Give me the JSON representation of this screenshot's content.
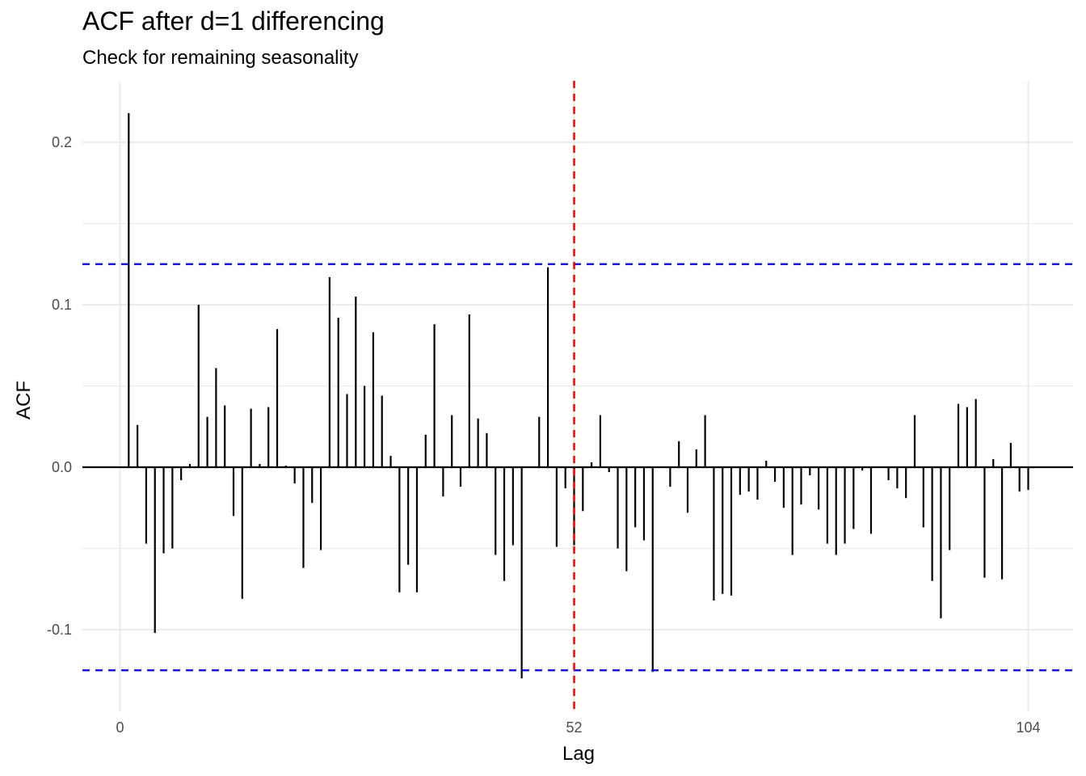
{
  "chart_data": {
    "type": "bar",
    "title": "ACF after d=1 differencing",
    "subtitle": "Check for remaining seasonality",
    "xlabel": "Lag",
    "ylabel": "ACF",
    "xlim": [
      0,
      104
    ],
    "ylim": [
      -0.13,
      0.22
    ],
    "x_ticks": [
      0,
      52,
      104
    ],
    "x_tick_labels": [
      "0",
      "52",
      "104"
    ],
    "y_ticks": [
      -0.1,
      0.0,
      0.1,
      0.2
    ],
    "y_tick_labels": [
      "-0.1",
      "0.0",
      "0.1",
      "0.2"
    ],
    "confidence_bound": 0.125,
    "seasonal_marker_lag": 52,
    "grid": true,
    "colors": {
      "bars": "#000000",
      "bounds": "#0000ff",
      "seasonal": "#ff0000",
      "grid": "#ebebeb"
    },
    "lags": [
      1,
      2,
      3,
      4,
      5,
      6,
      7,
      8,
      9,
      10,
      11,
      12,
      13,
      14,
      15,
      16,
      17,
      18,
      19,
      20,
      21,
      22,
      23,
      24,
      25,
      26,
      27,
      28,
      29,
      30,
      31,
      32,
      33,
      34,
      35,
      36,
      37,
      38,
      39,
      40,
      41,
      42,
      43,
      44,
      45,
      46,
      47,
      48,
      49,
      50,
      51,
      52,
      53,
      54,
      55,
      56,
      57,
      58,
      59,
      60,
      61,
      62,
      63,
      64,
      65,
      66,
      67,
      68,
      69,
      70,
      71,
      72,
      73,
      74,
      75,
      76,
      77,
      78,
      79,
      80,
      81,
      82,
      83,
      84,
      85,
      86,
      87,
      88,
      89,
      90,
      91,
      92,
      93,
      94,
      95,
      96,
      97,
      98,
      99,
      100,
      101,
      102,
      103,
      104
    ],
    "values": [
      0.218,
      0.026,
      -0.047,
      -0.102,
      -0.053,
      -0.05,
      -0.008,
      0.002,
      0.1,
      0.031,
      0.061,
      0.038,
      -0.03,
      -0.081,
      0.036,
      0.002,
      0.037,
      0.085,
      0.001,
      -0.01,
      -0.062,
      -0.022,
      -0.051,
      0.117,
      0.092,
      0.045,
      0.105,
      0.05,
      0.083,
      0.044,
      0.007,
      -0.077,
      -0.06,
      -0.077,
      0.02,
      0.088,
      -0.018,
      0.032,
      -0.012,
      0.094,
      0.03,
      0.021,
      -0.054,
      -0.07,
      -0.048,
      -0.13,
      0.0,
      0.031,
      0.123,
      -0.049,
      -0.013,
      -0.048,
      -0.027,
      0.003,
      0.032,
      -0.003,
      -0.05,
      -0.064,
      -0.037,
      -0.045,
      -0.126,
      0.0,
      -0.012,
      0.016,
      -0.028,
      0.011,
      0.032,
      -0.082,
      -0.078,
      -0.079,
      -0.017,
      -0.015,
      -0.02,
      0.004,
      -0.009,
      -0.025,
      -0.054,
      -0.023,
      -0.005,
      -0.026,
      -0.047,
      -0.054,
      -0.047,
      -0.038,
      -0.002,
      -0.041,
      0.0,
      -0.008,
      -0.013,
      -0.019,
      0.032,
      -0.037,
      -0.07,
      -0.093,
      -0.051,
      0.039,
      0.037,
      0.042,
      -0.068,
      0.005,
      -0.069,
      0.015,
      -0.015,
      -0.014
    ]
  }
}
